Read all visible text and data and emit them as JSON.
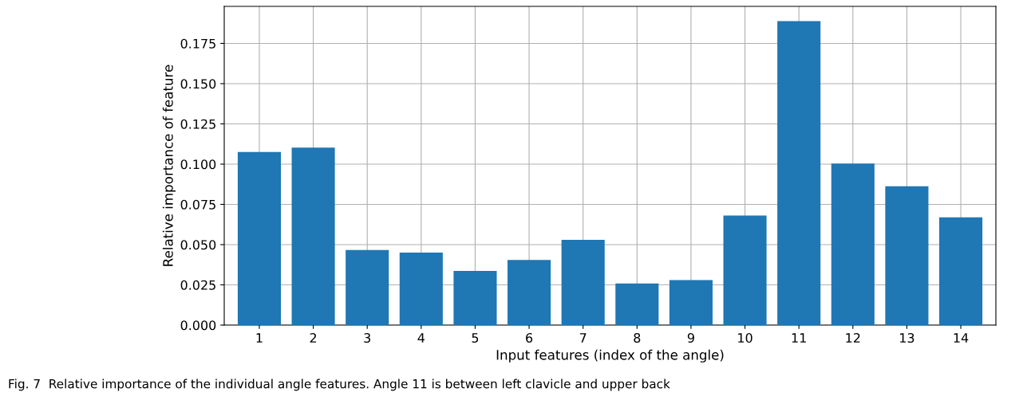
{
  "chart_data": {
    "type": "bar",
    "xlabel": "Input features (index of the angle)",
    "ylabel": "Relative importance of feature",
    "categories": [
      "1",
      "2",
      "3",
      "4",
      "5",
      "6",
      "7",
      "8",
      "9",
      "10",
      "11",
      "12",
      "13",
      "14"
    ],
    "values": [
      0.1076,
      0.1102,
      0.0467,
      0.0451,
      0.0337,
      0.0405,
      0.053,
      0.0259,
      0.028,
      0.0681,
      0.1889,
      0.1003,
      0.0863,
      0.067
    ],
    "color": "#1f77b4",
    "ylim": [
      0,
      0.198
    ],
    "yticks": [
      {
        "value": 0,
        "label": "0.000"
      },
      {
        "value": 0.025,
        "label": "0.025"
      },
      {
        "value": 0.05,
        "label": "0.050"
      },
      {
        "value": 0.075,
        "label": "0.075"
      },
      {
        "value": 0.1,
        "label": "0.100"
      },
      {
        "value": 0.125,
        "label": "0.125"
      },
      {
        "value": 0.15,
        "label": "0.150"
      },
      {
        "value": 0.175,
        "label": "0.175"
      }
    ],
    "grid": true,
    "annotations": [
      "Fig. 7  Relative importance of the individual angle features. Angle 11 is between left clavicle and upper back"
    ]
  }
}
